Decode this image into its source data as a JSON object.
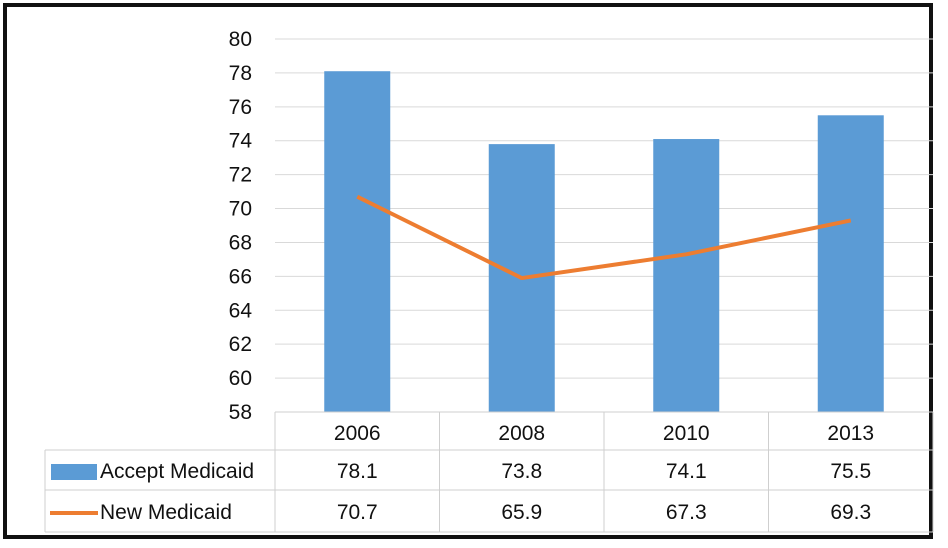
{
  "chart_data": {
    "type": "bar",
    "categories": [
      "2006",
      "2008",
      "2010",
      "2013"
    ],
    "series": [
      {
        "name": "Accept Medicaid",
        "type": "bar",
        "values": [
          78.1,
          73.8,
          74.1,
          75.5
        ],
        "color": "#5b9bd5"
      },
      {
        "name": "New Medicaid",
        "type": "line",
        "values": [
          70.7,
          65.9,
          67.3,
          69.3
        ],
        "color": "#ed7d31"
      }
    ],
    "value_labels": {
      "Accept Medicaid": [
        "78.1",
        "73.8",
        "74.1",
        "75.5"
      ],
      "New Medicaid": [
        "70.7",
        "65.9",
        "67.3",
        "69.3"
      ]
    },
    "y_ticks": [
      "80",
      "78",
      "76",
      "74",
      "72",
      "70",
      "68",
      "66",
      "64",
      "62",
      "60",
      "58"
    ],
    "ylim": [
      58,
      80
    ],
    "grid": true,
    "legend": "data-table"
  }
}
